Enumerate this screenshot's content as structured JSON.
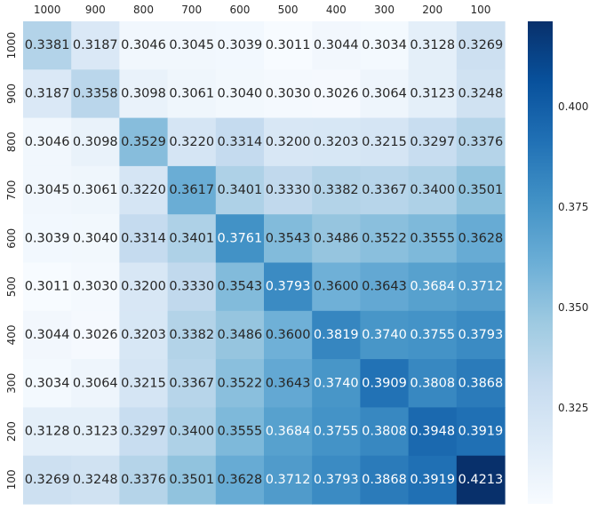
{
  "chart_data": {
    "type": "heatmap",
    "title": "",
    "xlabel": "",
    "ylabel": "",
    "x_categories": [
      "1000",
      "900",
      "800",
      "700",
      "600",
      "500",
      "400",
      "300",
      "200",
      "100"
    ],
    "y_categories": [
      "1000",
      "900",
      "800",
      "700",
      "600",
      "500",
      "400",
      "300",
      "200",
      "100"
    ],
    "x_tick_position": "top",
    "values": [
      [
        0.3381,
        0.3187,
        0.3046,
        0.3045,
        0.3039,
        0.3011,
        0.3044,
        0.3034,
        0.3128,
        0.3269
      ],
      [
        0.3187,
        0.3358,
        0.3098,
        0.3061,
        0.304,
        0.303,
        0.3026,
        0.3064,
        0.3123,
        0.3248
      ],
      [
        0.3046,
        0.3098,
        0.3529,
        0.322,
        0.3314,
        0.32,
        0.3203,
        0.3215,
        0.3297,
        0.3376
      ],
      [
        0.3045,
        0.3061,
        0.322,
        0.3617,
        0.3401,
        0.333,
        0.3382,
        0.3367,
        0.34,
        0.3501
      ],
      [
        0.3039,
        0.304,
        0.3314,
        0.3401,
        0.3761,
        0.3543,
        0.3486,
        0.3522,
        0.3555,
        0.3628
      ],
      [
        0.3011,
        0.303,
        0.32,
        0.333,
        0.3543,
        0.3793,
        0.36,
        0.3643,
        0.3684,
        0.3712
      ],
      [
        0.3044,
        0.3026,
        0.3203,
        0.3382,
        0.3486,
        0.36,
        0.3819,
        0.374,
        0.3755,
        0.3793
      ],
      [
        0.3034,
        0.3064,
        0.3215,
        0.3367,
        0.3522,
        0.3643,
        0.374,
        0.3909,
        0.3808,
        0.3868
      ],
      [
        0.3128,
        0.3123,
        0.3297,
        0.34,
        0.3555,
        0.3684,
        0.3755,
        0.3808,
        0.3948,
        0.3919
      ],
      [
        0.3269,
        0.3248,
        0.3376,
        0.3501,
        0.3628,
        0.3712,
        0.3793,
        0.3868,
        0.3919,
        0.4213
      ]
    ],
    "value_format_decimals": 4,
    "colorbar": {
      "colormap": "Blues",
      "min": 0.3011,
      "max": 0.4213,
      "ticks": [
        0.325,
        0.35,
        0.375,
        0.4
      ],
      "tick_labels": [
        "0.325",
        "0.350",
        "0.375",
        "0.400"
      ]
    },
    "colors": {
      "low": "#f7fbff",
      "high": "#08306b",
      "text_dark": "#262626",
      "text_light": "#ffffff"
    },
    "grid": false,
    "legend": "colorbar-right"
  }
}
